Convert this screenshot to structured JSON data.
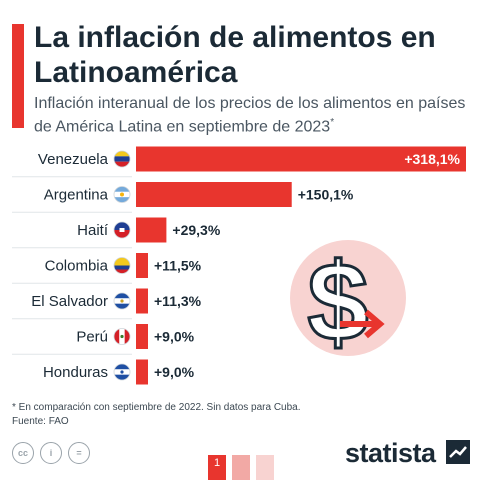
{
  "header": {
    "title": "La inflación de alimentos en Latinoamérica",
    "subtitle": "Inflación interanual de los precios de los alimentos en países de América Latina en septiembre de 2023",
    "subtitle_mark": "*"
  },
  "chart_data": {
    "type": "bar",
    "orientation": "horizontal",
    "title": "",
    "categories": [
      "Venezuela",
      "Argentina",
      "Haití",
      "Colombia",
      "El Salvador",
      "Perú",
      "Honduras"
    ],
    "values": [
      318.1,
      150.1,
      29.3,
      11.5,
      11.3,
      9.0,
      9.0
    ],
    "value_labels": [
      "+318,1%",
      "+150,1%",
      "+29,3%",
      "+11,5%",
      "+11,3%",
      "+9,0%",
      "+9,0%"
    ],
    "flags": [
      "venezuela-flag",
      "argentina-flag",
      "haiti-flag",
      "colombia-flag",
      "el-salvador-flag",
      "peru-flag",
      "honduras-flag"
    ],
    "bar_color": "#e8352e",
    "grid": false,
    "xlim": [
      0,
      318.1
    ]
  },
  "illustration": {
    "icon": "dollar-arrow-icon"
  },
  "footer": {
    "note": "* En comparación con septiembre de 2022. Sin datos para Cuba.",
    "source": "Fuente: FAO",
    "brand": "statista",
    "page_tab": "1",
    "license_icons": [
      "cc",
      "i",
      "="
    ]
  },
  "colors": {
    "accent": "#e8352e",
    "text": "#1b2a36",
    "circle": "#f8d3d1"
  }
}
